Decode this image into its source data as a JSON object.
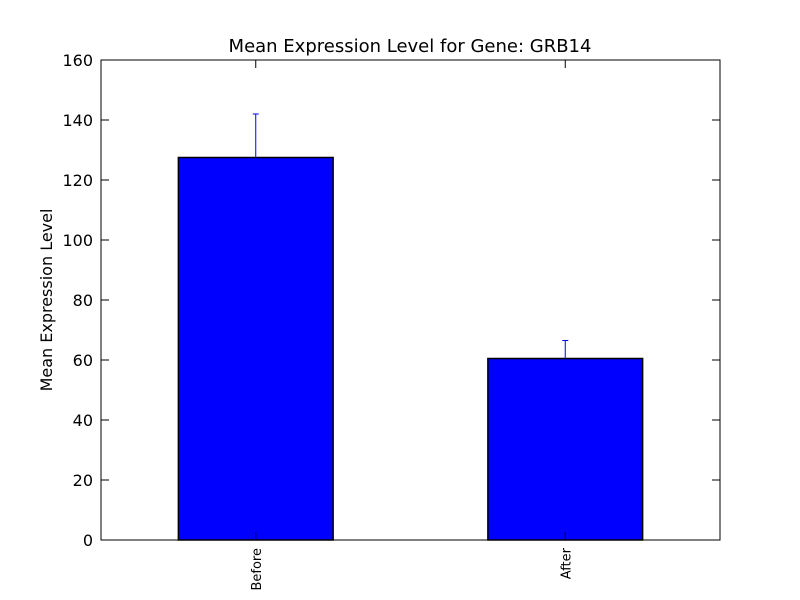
{
  "chart_data": {
    "type": "bar",
    "title": "Mean Expression Level for Gene: GRB14",
    "xlabel": "",
    "ylabel": "Mean Expression Level",
    "categories": [
      "Before",
      "After"
    ],
    "values": [
      127.5,
      60.5
    ],
    "error_upper": [
      142,
      66.5
    ],
    "ylim": [
      0,
      160
    ],
    "yticks": [
      0,
      20,
      40,
      60,
      80,
      100,
      120,
      140,
      160
    ],
    "grid": false,
    "legend": "none",
    "colors": {
      "bar": "#0000ff",
      "error": "#0000ff",
      "edge": "#000000"
    }
  }
}
